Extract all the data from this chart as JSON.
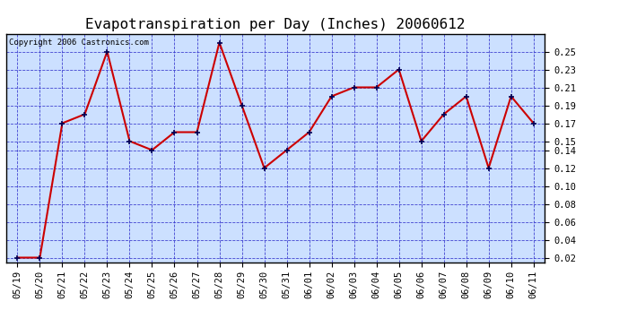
{
  "title": "Evapotranspiration per Day (Inches) 20060612",
  "copyright_text": "Copyright 2006 Castronics.com",
  "dates": [
    "05/19",
    "05/20",
    "05/21",
    "05/22",
    "05/23",
    "05/24",
    "05/25",
    "05/26",
    "05/27",
    "05/28",
    "05/29",
    "05/30",
    "05/31",
    "06/01",
    "06/02",
    "06/03",
    "06/04",
    "06/05",
    "06/06",
    "06/07",
    "06/08",
    "06/09",
    "06/10",
    "06/11"
  ],
  "values": [
    0.02,
    0.02,
    0.17,
    0.18,
    0.25,
    0.15,
    0.14,
    0.16,
    0.16,
    0.26,
    0.19,
    0.12,
    0.14,
    0.16,
    0.2,
    0.21,
    0.21,
    0.23,
    0.15,
    0.18,
    0.2,
    0.12,
    0.2,
    0.17
  ],
  "line_color": "#cc0000",
  "marker_color": "#000055",
  "figure_bg_color": "#ffffff",
  "plot_bg_color": "#cce0ff",
  "grid_color": "#3333cc",
  "border_color": "#000000",
  "ylim": [
    0.015,
    0.27
  ],
  "yticks": [
    0.02,
    0.04,
    0.06,
    0.08,
    0.1,
    0.12,
    0.14,
    0.15,
    0.17,
    0.19,
    0.21,
    0.23,
    0.25
  ],
  "title_fontsize": 11.5,
  "tick_fontsize": 7.5,
  "copyright_fontsize": 6.5
}
